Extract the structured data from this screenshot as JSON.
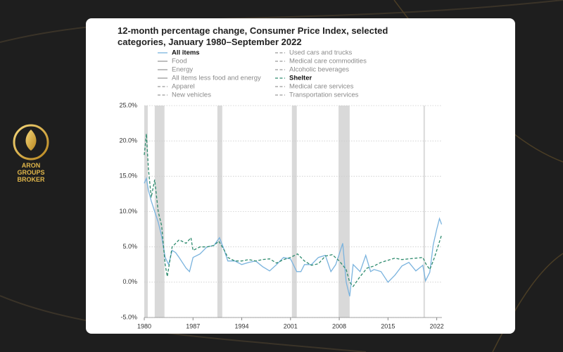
{
  "logo": {
    "lines": [
      "ARON",
      "GROUPS",
      "BROKER"
    ]
  },
  "chart_data": {
    "type": "line",
    "title": "12-month percentage change, Consumer Price Index, selected categories, January 1980–September 2022",
    "xlim": [
      1980,
      2022.75
    ],
    "xticks": [
      1980,
      1987,
      1994,
      2001,
      2008,
      2015,
      2022
    ],
    "ylim": [
      -5,
      25
    ],
    "yticks": [
      {
        "value": -5,
        "label": "-5.0%"
      },
      {
        "value": 0,
        "label": "0.0%"
      },
      {
        "value": 5,
        "label": "5.0%"
      },
      {
        "value": 10,
        "label": "10.0%"
      },
      {
        "value": 15,
        "label": "15.0%"
      },
      {
        "value": 20,
        "label": "20.0%"
      },
      {
        "value": 25,
        "label": "25.0%"
      }
    ],
    "grid": true,
    "shaded_periods": [
      [
        1980.0,
        1980.5
      ],
      [
        1981.5,
        1982.9
      ],
      [
        1990.5,
        1991.2
      ],
      [
        2001.2,
        2001.9
      ],
      [
        2007.9,
        2009.5
      ],
      [
        2020.1,
        2020.3
      ]
    ],
    "shade_color": "#d9d9d9",
    "series": [
      {
        "name": "All items",
        "color": "#7ab3de",
        "dashed": false,
        "active": true,
        "x": [
          1980,
          1980.3,
          1980.6,
          1981,
          1981.5,
          1982,
          1982.5,
          1983,
          1983.5,
          1984,
          1984.5,
          1985,
          1986,
          1986.5,
          1987,
          1988,
          1989,
          1990,
          1990.8,
          1991.5,
          1992,
          1993,
          1994,
          1995,
          1996,
          1997,
          1998,
          1999,
          2000,
          2001,
          2001.9,
          2002.5,
          2003,
          2004,
          2005,
          2006,
          2006.8,
          2007.5,
          2008.5,
          2009,
          2009.5,
          2010,
          2011,
          2011.8,
          2012.5,
          2013,
          2014,
          2015,
          2016,
          2017,
          2018,
          2019,
          2020,
          2020.4,
          2021,
          2021.5,
          2022,
          2022.4,
          2022.7
        ],
        "values": [
          14,
          14.7,
          13,
          11.5,
          10,
          8.5,
          6.5,
          3.5,
          2.5,
          4.5,
          4.2,
          3.5,
          2,
          1.5,
          3.5,
          4,
          5,
          5.2,
          6.3,
          4.5,
          3,
          3,
          2.5,
          2.8,
          3,
          2.2,
          1.6,
          2.5,
          3.5,
          3.3,
          1.5,
          1.5,
          2.5,
          2.5,
          3.5,
          3.8,
          1.5,
          2.5,
          5.5,
          0,
          -2,
          2.5,
          1.5,
          3.8,
          1.5,
          1.8,
          1.5,
          0,
          1,
          2.3,
          2.8,
          1.6,
          2.4,
          0.2,
          1.4,
          5.3,
          7.5,
          9,
          8.2
        ]
      },
      {
        "name": "Food",
        "color": "#9a9a9a",
        "dashed": false,
        "active": false,
        "x": [],
        "values": []
      },
      {
        "name": "Energy",
        "color": "#9a9a9a",
        "dashed": false,
        "active": false,
        "x": [],
        "values": []
      },
      {
        "name": "All items less food and energy",
        "color": "#9a9a9a",
        "dashed": false,
        "active": false,
        "x": [],
        "values": []
      },
      {
        "name": "Apparel",
        "color": "#9a9a9a",
        "dashed": true,
        "active": false,
        "x": [],
        "values": []
      },
      {
        "name": "New vehicles",
        "color": "#9a9a9a",
        "dashed": true,
        "active": false,
        "x": [],
        "values": []
      },
      {
        "name": "Used cars and trucks",
        "color": "#9a9a9a",
        "dashed": true,
        "active": false,
        "x": [],
        "values": []
      },
      {
        "name": "Medical care commodities",
        "color": "#9a9a9a",
        "dashed": true,
        "active": false,
        "x": [],
        "values": []
      },
      {
        "name": "Alcoholic beverages",
        "color": "#9a9a9a",
        "dashed": true,
        "active": false,
        "x": [],
        "values": []
      },
      {
        "name": "Shelter",
        "color": "#2e8b6e",
        "dashed": true,
        "active": true,
        "x": [
          1980,
          1980.3,
          1980.6,
          1981,
          1981.5,
          1982,
          1982.5,
          1983,
          1983.3,
          1984,
          1985,
          1986,
          1986.7,
          1987,
          1988,
          1989,
          1990,
          1990.7,
          1991.5,
          1992,
          1993,
          1994,
          1995,
          1996,
          1997,
          1998,
          1999,
          2000,
          2001,
          2002,
          2003,
          2004,
          2005,
          2006,
          2007,
          2008,
          2009,
          2009.5,
          2010,
          2011,
          2012,
          2013,
          2014,
          2015,
          2016,
          2017,
          2018,
          2019,
          2020,
          2020.5,
          2021,
          2021.5,
          2022,
          2022.7
        ],
        "values": [
          18,
          21,
          16,
          12,
          14.5,
          10,
          8,
          2.5,
          0.8,
          5,
          6,
          5.5,
          6.3,
          4.5,
          5,
          5,
          5.2,
          5.8,
          4.5,
          3.5,
          3,
          3,
          3.2,
          3,
          3.2,
          3.3,
          2.7,
          3.2,
          3.5,
          4,
          3,
          2.4,
          2.6,
          3.7,
          3.9,
          3,
          1.8,
          0,
          -0.6,
          0.8,
          2,
          2.3,
          2.8,
          3.1,
          3.4,
          3.2,
          3.3,
          3.4,
          3.5,
          2.5,
          1.8,
          3,
          4.5,
          6.7
        ]
      },
      {
        "name": "Medical care services",
        "color": "#9a9a9a",
        "dashed": true,
        "active": false,
        "x": [],
        "values": []
      },
      {
        "name": "Transportation services",
        "color": "#9a9a9a",
        "dashed": true,
        "active": false,
        "x": [],
        "values": []
      }
    ]
  }
}
